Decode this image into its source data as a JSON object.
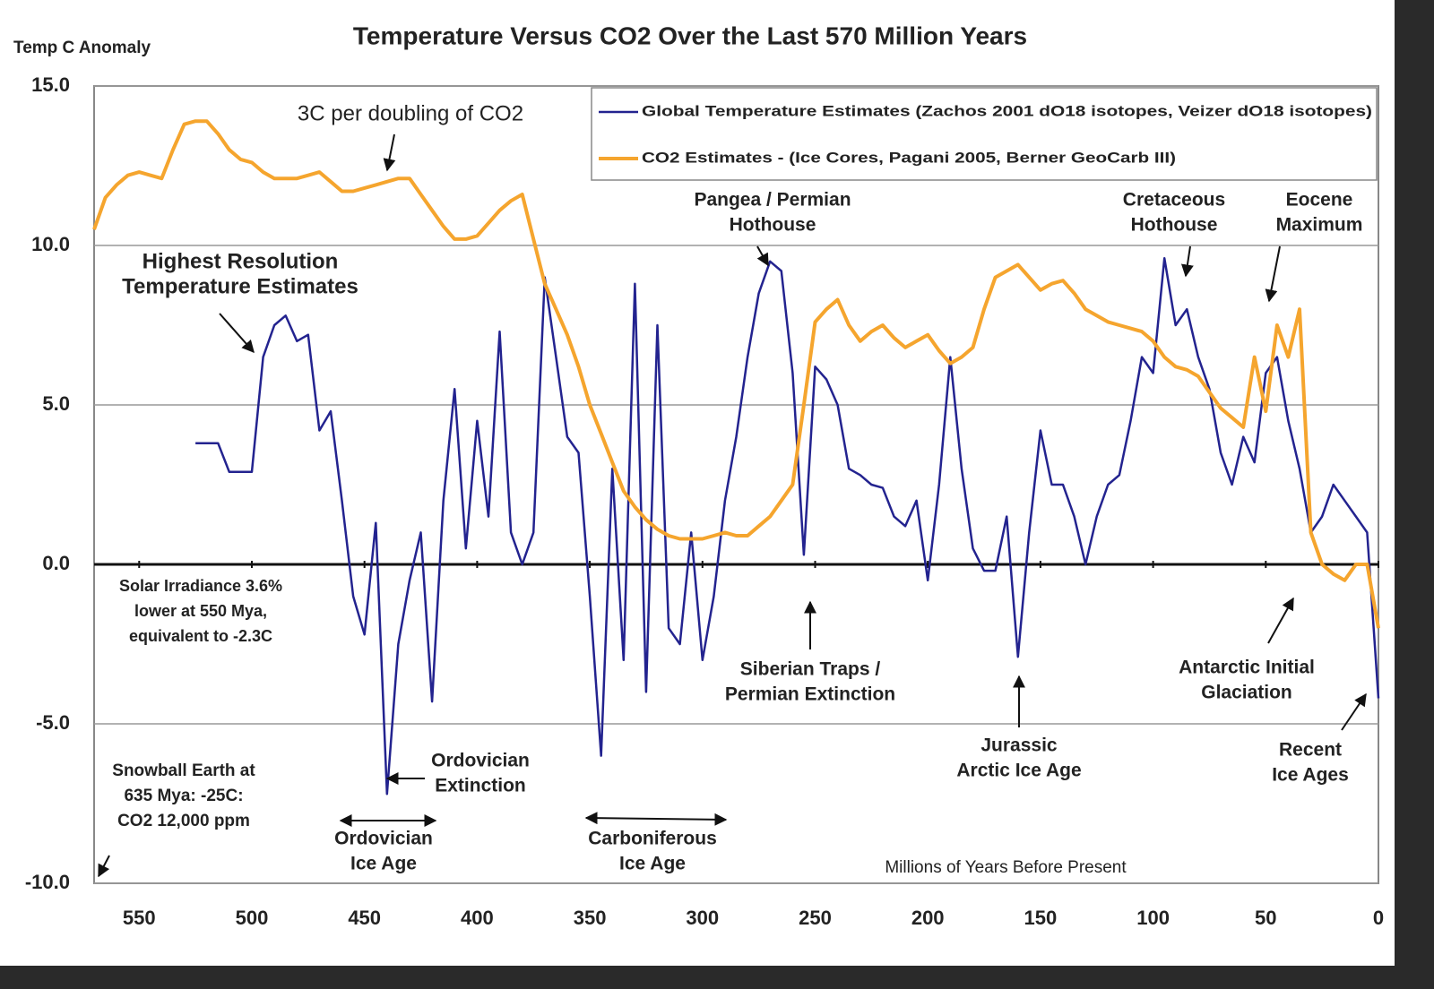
{
  "chart_data": {
    "type": "line",
    "title": "Temperature Versus CO2 Over the Last 570 Million Years",
    "y_label": "Temp C Anomaly",
    "x_label": "Millions of Years Before Present",
    "xlim": [
      570,
      0
    ],
    "ylim": [
      -10,
      15
    ],
    "xticks": [
      550,
      500,
      450,
      400,
      350,
      300,
      250,
      200,
      150,
      100,
      50,
      0
    ],
    "yticks": [
      {
        "value": 15,
        "label": "15.0"
      },
      {
        "value": 10,
        "label": "10.0"
      },
      {
        "value": 5,
        "label": "5.0"
      },
      {
        "value": 0,
        "label": "0.0"
      },
      {
        "value": -5,
        "label": "-5.0"
      },
      {
        "value": -10,
        "label": "-10.0"
      }
    ],
    "grid": true,
    "legend": "upper right",
    "x": [
      570,
      565,
      560,
      555,
      550,
      545,
      540,
      535,
      530,
      525,
      520,
      515,
      510,
      505,
      500,
      495,
      490,
      485,
      480,
      475,
      470,
      465,
      460,
      455,
      450,
      445,
      440,
      435,
      430,
      425,
      420,
      415,
      410,
      405,
      400,
      395,
      390,
      385,
      380,
      375,
      370,
      365,
      360,
      355,
      350,
      345,
      340,
      335,
      330,
      325,
      320,
      315,
      310,
      305,
      300,
      295,
      290,
      285,
      280,
      275,
      270,
      265,
      260,
      255,
      250,
      245,
      240,
      235,
      230,
      225,
      220,
      215,
      210,
      205,
      200,
      195,
      190,
      185,
      180,
      175,
      170,
      165,
      160,
      155,
      150,
      145,
      140,
      135,
      130,
      125,
      120,
      115,
      110,
      105,
      100,
      95,
      90,
      85,
      80,
      75,
      70,
      65,
      60,
      55,
      50,
      45,
      40,
      35,
      30,
      25,
      20,
      15,
      10,
      5,
      0
    ],
    "series": [
      {
        "name": "Global Temperature Estimates (Zachos 2001 dO18 isotopes, Veizer dO18 isotopes)",
        "color": "#23238f",
        "values": [
          null,
          null,
          null,
          null,
          null,
          null,
          null,
          null,
          null,
          3.8,
          3.8,
          3.8,
          2.9,
          2.9,
          2.9,
          6.5,
          7.5,
          7.8,
          7.0,
          7.2,
          4.2,
          4.8,
          2.0,
          -1.0,
          -2.2,
          1.3,
          -7.2,
          -2.5,
          -0.5,
          1.0,
          -4.3,
          2.0,
          5.5,
          0.5,
          4.5,
          1.5,
          7.3,
          1.0,
          0.0,
          1.0,
          9.0,
          6.5,
          4.0,
          3.5,
          -1.0,
          -6.0,
          3.0,
          -3.0,
          8.8,
          -4.0,
          7.5,
          -2.0,
          -2.5,
          1.0,
          -3.0,
          -1.0,
          2.0,
          4.0,
          6.5,
          8.5,
          9.5,
          9.2,
          6.0,
          0.3,
          6.2,
          5.8,
          5.0,
          3.0,
          2.8,
          2.5,
          2.4,
          1.5,
          1.2,
          2.0,
          -0.5,
          2.5,
          6.5,
          3.0,
          0.5,
          -0.2,
          -0.2,
          1.5,
          -2.9,
          1.0,
          4.2,
          2.5,
          2.5,
          1.5,
          0.0,
          1.5,
          2.5,
          2.8,
          4.5,
          6.5,
          6.0,
          9.6,
          7.5,
          8.0,
          6.5,
          5.5,
          3.5,
          2.5,
          4.0,
          3.2,
          6.0,
          6.5,
          4.5,
          3.0,
          1.0,
          1.5,
          2.5,
          2.0,
          1.5,
          1.0,
          -4.2
        ]
      },
      {
        "name": "CO2 Estimates - (Ice Cores, Pagani 2005, Berner GeoCarb III)",
        "color": "#f5a52e",
        "values": [
          10.5,
          11.5,
          11.9,
          12.2,
          12.3,
          12.2,
          12.1,
          13.0,
          13.8,
          13.9,
          13.9,
          13.5,
          13.0,
          12.7,
          12.6,
          12.3,
          12.1,
          12.1,
          12.1,
          12.2,
          12.3,
          12.0,
          11.7,
          11.7,
          11.8,
          11.9,
          12.0,
          12.1,
          12.1,
          11.6,
          11.1,
          10.6,
          10.2,
          10.2,
          10.3,
          10.7,
          11.1,
          11.4,
          11.6,
          10.2,
          8.8,
          8.0,
          7.2,
          6.2,
          5.0,
          4.1,
          3.2,
          2.3,
          1.8,
          1.4,
          1.1,
          0.9,
          0.8,
          0.8,
          0.8,
          0.9,
          1.0,
          0.9,
          0.9,
          1.2,
          1.5,
          2.0,
          2.5,
          5.0,
          7.6,
          8.0,
          8.3,
          7.5,
          7.0,
          7.3,
          7.5,
          7.1,
          6.8,
          7.0,
          7.2,
          6.7,
          6.3,
          6.5,
          6.8,
          8.0,
          9.0,
          9.2,
          9.4,
          9.0,
          8.6,
          8.8,
          8.9,
          8.5,
          8.0,
          7.8,
          7.6,
          7.5,
          7.4,
          7.3,
          7.0,
          6.5,
          6.2,
          6.1,
          5.9,
          5.4,
          4.9,
          4.6,
          4.3,
          6.5,
          4.8,
          7.5,
          6.5,
          8.0,
          1.0,
          0.0,
          -0.3,
          -0.5,
          0.0,
          0.0,
          -2.0
        ]
      }
    ],
    "annotations": [
      {
        "lines": [
          "3C per doubling of CO2"
        ]
      },
      {
        "lines": [
          "Highest Resolution",
          "Temperature Estimates"
        ]
      },
      {
        "lines": [
          "Pangea / Permian",
          "Hothouse"
        ]
      },
      {
        "lines": [
          "Cretaceous",
          "Hothouse"
        ]
      },
      {
        "lines": [
          "Eocene",
          "Maximum"
        ]
      },
      {
        "lines": [
          "Solar Irradiance 3.6%",
          "lower at 550 Mya,",
          "equivalent to -2.3C"
        ]
      },
      {
        "lines": [
          "Siberian Traps /",
          "Permian Extinction"
        ]
      },
      {
        "lines": [
          "Jurassic",
          "Arctic Ice Age"
        ]
      },
      {
        "lines": [
          "Antarctic Initial",
          "Glaciation"
        ]
      },
      {
        "lines": [
          "Recent",
          "Ice Ages"
        ]
      },
      {
        "lines": [
          "Snowball Earth at",
          "635 Mya: -25C:",
          "CO2 12,000 ppm"
        ]
      },
      {
        "lines": [
          "Ordovician",
          "Extinction"
        ]
      },
      {
        "lines": [
          "Ordovician",
          "Ice Age"
        ]
      },
      {
        "lines": [
          "Carboniferous",
          "Ice Age"
        ]
      }
    ]
  }
}
